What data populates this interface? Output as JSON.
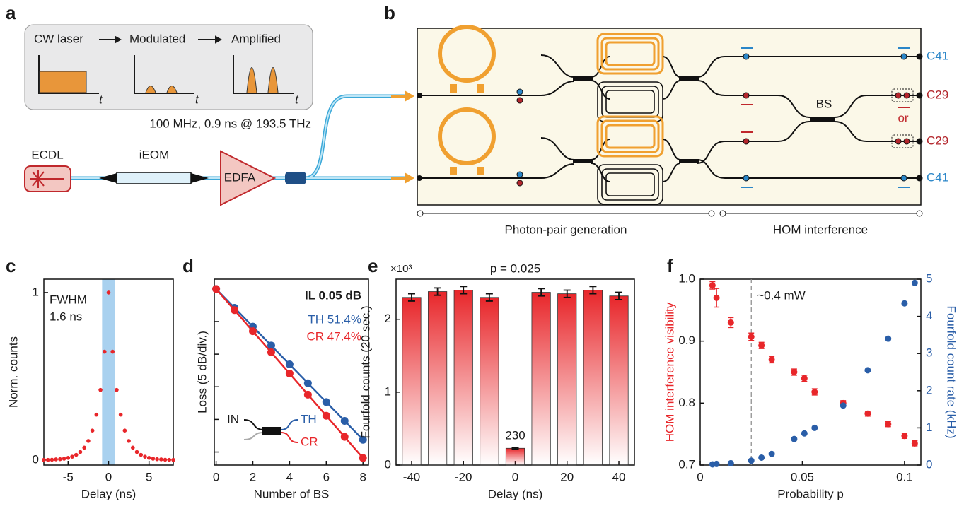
{
  "panel_labels": [
    "a",
    "b",
    "c",
    "d",
    "e",
    "f"
  ],
  "panel_a": {
    "stages": [
      "CW laser",
      "Modulated",
      "Amplified"
    ],
    "time_axis": "t",
    "pulse_spec": "100 MHz, 0.9 ns @ 193.5 THz",
    "components": [
      "ECDL",
      "iEOM",
      "EDFA"
    ]
  },
  "panel_b": {
    "beam_splitter": "BS",
    "or": "or",
    "outputs": [
      "C41",
      "C29",
      "C29",
      "C41"
    ],
    "sections": [
      "Photon-pair generation",
      "HOM interference"
    ]
  },
  "chart_data": [
    {
      "type": "scatter",
      "xlabel": "Delay (ns)",
      "ylabel": "Norm. counts",
      "annotation": [
        "FWHM",
        "1.6 ns"
      ],
      "x": [
        -8,
        -7.5,
        -7,
        -6.5,
        -6,
        -5.5,
        -5,
        -4.5,
        -4,
        -3.5,
        -3,
        -2.5,
        -2,
        -1.5,
        -1,
        -0.5,
        0,
        0.5,
        1,
        1.5,
        2,
        2.5,
        3,
        3.5,
        4,
        4.5,
        5,
        5.5,
        6,
        6.5,
        7,
        7.5,
        8
      ],
      "values": [
        0.001,
        0.001,
        0.002,
        0.004,
        0.005,
        0.008,
        0.013,
        0.02,
        0.031,
        0.048,
        0.074,
        0.114,
        0.176,
        0.271,
        0.419,
        0.647,
        1,
        0.647,
        0.419,
        0.271,
        0.176,
        0.114,
        0.074,
        0.048,
        0.031,
        0.02,
        0.013,
        0.008,
        0.005,
        0.004,
        0.002,
        0.001,
        0.001
      ],
      "color": "#e8262a",
      "highlight": [
        -0.8,
        0.8
      ],
      "highlight_color": "#a9d1ef",
      "xlim": [
        -8,
        8
      ],
      "xticks": [
        -5,
        0,
        5
      ],
      "ylim": [
        -0.03,
        1.08
      ],
      "yticks": [
        0,
        1
      ]
    },
    {
      "type": "line",
      "xlabel": "Number of BS",
      "ylabel": "Loss (5 dB/div.)",
      "annotation": "IL 0.05 dB",
      "x": [
        0,
        1,
        2,
        3,
        4,
        5,
        6,
        7,
        8
      ],
      "series": [
        {
          "name": "TH 51.4%",
          "color": "#2a5ea8",
          "values": [
            0,
            -2.89,
            -5.78,
            -8.67,
            -11.56,
            -14.45,
            -17.34,
            -20.23,
            -23.12
          ]
        },
        {
          "name": "CR 47.4%",
          "color": "#e8262a",
          "values": [
            0,
            -3.24,
            -6.48,
            -9.72,
            -12.96,
            -16.2,
            -19.44,
            -22.68,
            -25.92
          ]
        }
      ],
      "inset_labels": [
        "IN",
        "TH",
        "CR"
      ],
      "xlim": [
        -0.1,
        8.3
      ],
      "xticks": [
        0,
        2,
        4,
        6,
        8
      ],
      "ylim": [
        -27,
        1.5
      ],
      "yticks": [
        0,
        -5,
        -10,
        -15,
        -20,
        -25
      ],
      "ytick_labels": false
    },
    {
      "type": "bar",
      "title": "p = 0.025",
      "xlabel": "Delay (ns)",
      "ylabel": "Fourfold counts (20 sec.)",
      "multiplier": "×10³",
      "x": [
        -40,
        -30,
        -20,
        -10,
        0,
        10,
        20,
        30,
        40
      ],
      "values": [
        2.3,
        2.38,
        2.4,
        2.3,
        0.23,
        2.37,
        2.35,
        2.4,
        2.32
      ],
      "errors": [
        0.05,
        0.05,
        0.05,
        0.05,
        0.01,
        0.05,
        0.05,
        0.05,
        0.05
      ],
      "value_labels": [
        null,
        null,
        null,
        null,
        "230",
        null,
        null,
        null,
        null
      ],
      "color": "#e8262a",
      "xlim": [
        -46,
        46
      ],
      "xticks": [
        -40,
        -20,
        0,
        20,
        40
      ],
      "ylim": [
        0,
        2.55
      ],
      "yticks": [
        0,
        1,
        2
      ]
    },
    {
      "type": "scatter",
      "xlabel": "Probability p",
      "ylabel": "HOM interference visibility",
      "y2label": "Fourfold count rate (kHz)",
      "annotation": "~0.4 mW",
      "vline": 0.025,
      "x": [
        0.006,
        0.008,
        0.015,
        0.025,
        0.03,
        0.035,
        0.046,
        0.051,
        0.056,
        0.07,
        0.082,
        0.092,
        0.1,
        0.105
      ],
      "series": [
        {
          "color": "#e8262a",
          "values": [
            0.99,
            0.97,
            0.93,
            0.907,
            0.893,
            0.87,
            0.85,
            0.84,
            0.818,
            0.8,
            0.783,
            0.766,
            0.747,
            0.735
          ],
          "errors": [
            0.006,
            0.015,
            0.008,
            0.006,
            0.005,
            0.005,
            0.005,
            0.005,
            0.005,
            0.004,
            0.004,
            0.004,
            0.004,
            0.004
          ]
        },
        {
          "color": "#2a5ea8",
          "axis": "y2",
          "values": [
            0.02,
            0.03,
            0.05,
            0.12,
            0.2,
            0.3,
            0.7,
            0.85,
            1.0,
            1.6,
            2.55,
            3.4,
            4.35,
            4.9
          ]
        }
      ],
      "xlim": [
        0,
        0.108
      ],
      "xticks": [
        0,
        0.05,
        0.1
      ],
      "ylim": [
        0.7,
        1
      ],
      "yticks": [
        0.7,
        0.8,
        0.9,
        {
          "value": 1,
          "label": "1.0"
        }
      ],
      "y2lim": [
        0,
        5
      ],
      "y2ticks": [
        0,
        1,
        2,
        3,
        4,
        5
      ]
    }
  ]
}
